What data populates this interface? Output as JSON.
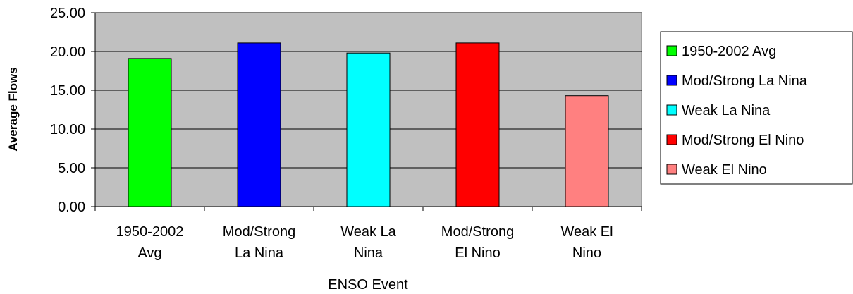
{
  "chart_data": {
    "type": "bar",
    "title": "",
    "xlabel": "ENSO Event",
    "ylabel": "Average Flows",
    "ylim": [
      0,
      25
    ],
    "yticks": [
      "0.00",
      "5.00",
      "10.00",
      "15.00",
      "20.00",
      "25.00"
    ],
    "categories": [
      [
        "1950-2002",
        "Avg"
      ],
      [
        "Mod/Strong",
        "La Nina"
      ],
      [
        "Weak La",
        "Nina"
      ],
      [
        "Mod/Strong",
        "El Nino"
      ],
      [
        "Weak El",
        "Nino"
      ]
    ],
    "values": [
      19.1,
      21.1,
      19.8,
      21.1,
      14.3
    ],
    "colors": [
      "#00ff00",
      "#0000ff",
      "#00ffff",
      "#ff0000",
      "#ff8080"
    ],
    "plot_background": "#c0c0c0",
    "grid": true,
    "legend": {
      "placement": "right",
      "entries": [
        "1950-2002 Avg",
        "Mod/Strong La Nina",
        "Weak La Nina",
        "Mod/Strong El Nino",
        "Weak El Nino"
      ]
    }
  }
}
